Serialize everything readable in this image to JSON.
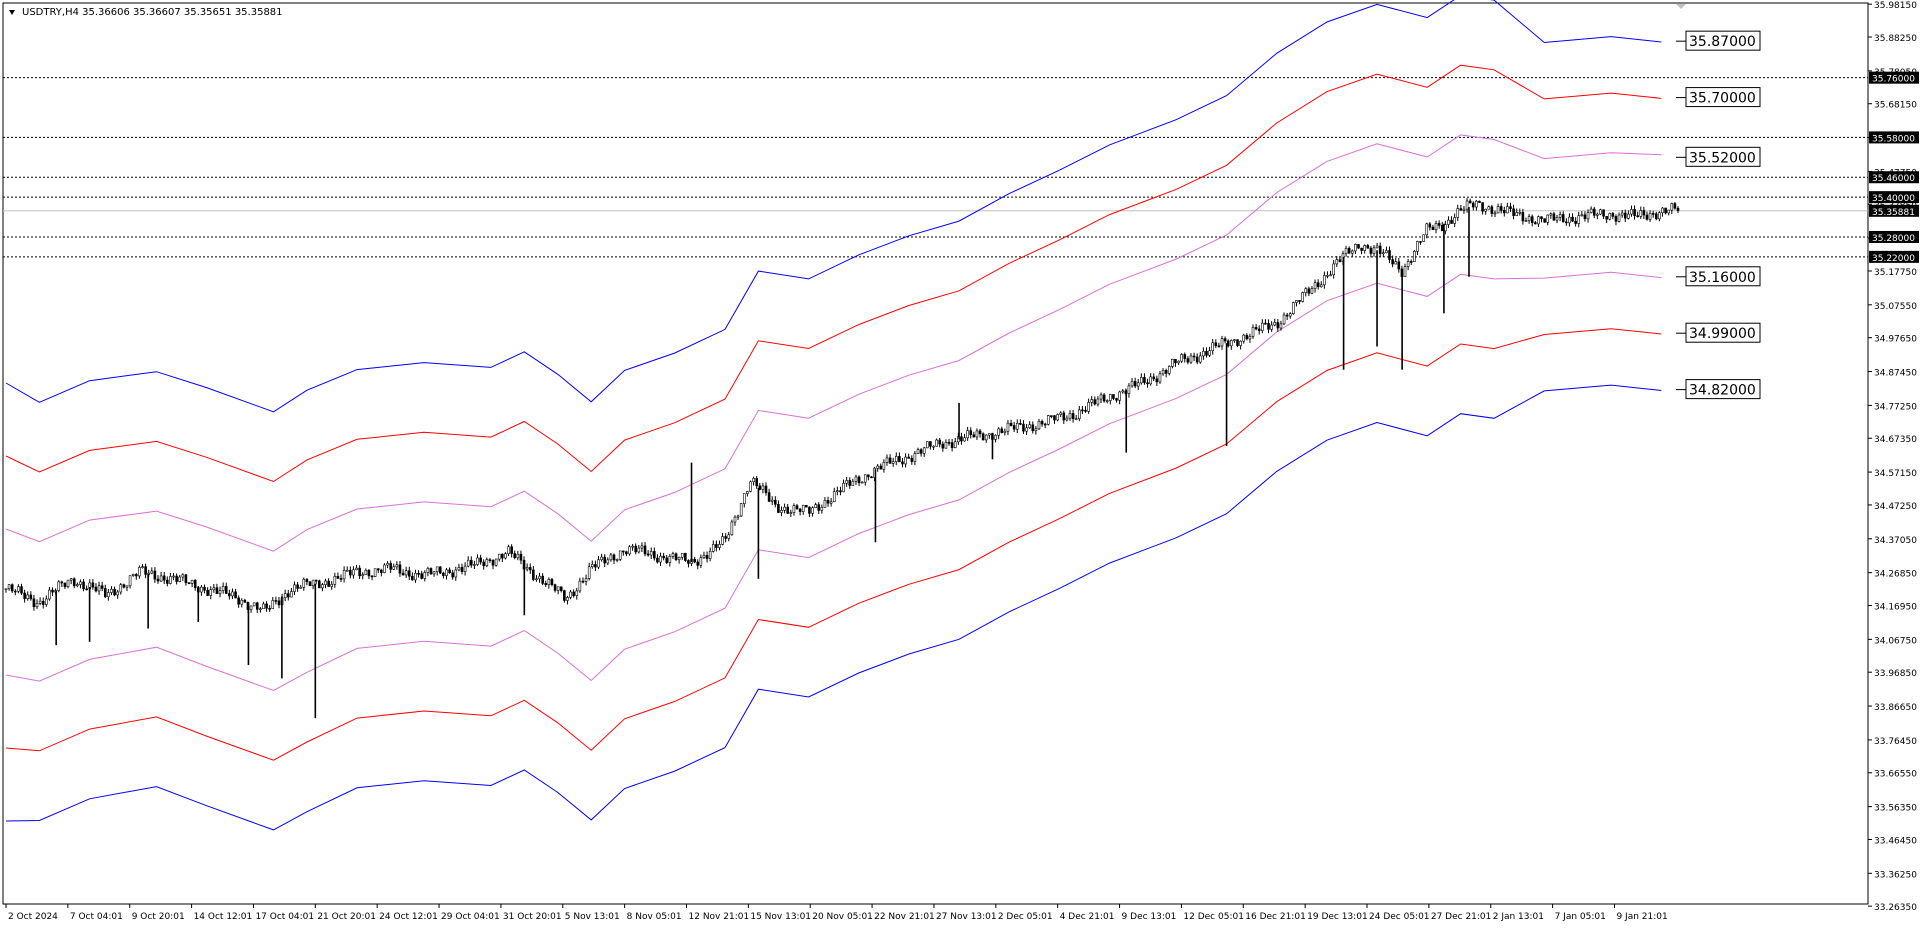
{
  "window": {
    "title": "USDTRY,H4  35.36606 35.36607 35.35651 35.35881"
  },
  "chart_data": {
    "type": "line",
    "symbol": "USDTRY",
    "timeframe": "H4",
    "ohlc_header": {
      "open": "35.36606",
      "high": "35.36607",
      "low": "35.35651",
      "close": "35.35881"
    },
    "ylim": [
      33.27,
      35.985
    ],
    "y_ticks": [
      "35.98150",
      "35.88250",
      "35.78050",
      "35.68150",
      "35.57950",
      "35.47750",
      "35.37850",
      "35.27650",
      "35.17750",
      "35.07550",
      "34.97650",
      "34.87450",
      "34.77250",
      "34.67350",
      "34.57150",
      "34.47250",
      "34.37050",
      "34.26850",
      "34.16950",
      "34.06750",
      "33.96850",
      "33.86650",
      "33.76450",
      "33.66550",
      "33.56350",
      "33.46450",
      "33.36250",
      "33.26350"
    ],
    "x_ticks": [
      {
        "label": "2 Oct 2024",
        "pos": 0.0
      },
      {
        "label": "7 Oct 04:01",
        "pos": 0.037
      },
      {
        "label": "9 Oct 20:01",
        "pos": 0.074
      },
      {
        "label": "14 Oct 12:01",
        "pos": 0.111
      },
      {
        "label": "17 Oct 04:01",
        "pos": 0.148
      },
      {
        "label": "21 Oct 20:01",
        "pos": 0.185
      },
      {
        "label": "24 Oct 12:01",
        "pos": 0.222
      },
      {
        "label": "29 Oct 04:01",
        "pos": 0.259
      },
      {
        "label": "31 Oct 20:01",
        "pos": 0.296
      },
      {
        "label": "5 Nov 13:01",
        "pos": 0.333
      },
      {
        "label": "8 Nov 05:01",
        "pos": 0.37
      },
      {
        "label": "12 Nov 21:01",
        "pos": 0.407
      },
      {
        "label": "15 Nov 13:01",
        "pos": 0.444
      },
      {
        "label": "20 Nov 05:01",
        "pos": 0.481
      },
      {
        "label": "22 Nov 21:01",
        "pos": 0.518
      },
      {
        "label": "27 Nov 13:01",
        "pos": 0.555
      },
      {
        "label": "2 Dec 05:01",
        "pos": 0.592
      },
      {
        "label": "4 Dec 21:01",
        "pos": 0.629
      },
      {
        "label": "9 Dec 13:01",
        "pos": 0.666
      },
      {
        "label": "12 Dec 05:01",
        "pos": 0.703
      },
      {
        "label": "16 Dec 21:01",
        "pos": 0.74
      },
      {
        "label": "19 Dec 13:01",
        "pos": 0.777
      },
      {
        "label": "24 Dec 05:01",
        "pos": 0.814
      },
      {
        "label": "27 Dec 21:01",
        "pos": 0.851
      },
      {
        "label": "2 Jan 13:01",
        "pos": 0.888
      },
      {
        "label": "7 Jan 05:01",
        "pos": 0.925
      },
      {
        "label": "9 Jan 21:01",
        "pos": 0.962
      }
    ],
    "horizontal_levels": [
      {
        "value": 35.76,
        "label": "35.76000"
      },
      {
        "value": 35.58,
        "label": "35.58000"
      },
      {
        "value": 35.46,
        "label": "35.46000"
      },
      {
        "value": 35.4,
        "label": "35.40000"
      },
      {
        "value": 35.28,
        "label": "35.28000"
      },
      {
        "value": 35.22,
        "label": "35.22000"
      }
    ],
    "current_price": {
      "value": 35.35881,
      "label": "35.35881"
    },
    "band_labels": [
      {
        "value": 35.87,
        "label": "35.87000",
        "band": "upper3"
      },
      {
        "value": 35.7,
        "label": "35.70000",
        "band": "upper2"
      },
      {
        "value": 35.52,
        "label": "35.52000",
        "band": "upper1"
      },
      {
        "value": 35.16,
        "label": "35.16000",
        "band": "lower1"
      },
      {
        "value": 34.99,
        "label": "34.99000",
        "band": "lower2"
      },
      {
        "value": 34.82,
        "label": "34.82000",
        "band": "lower3"
      }
    ],
    "bands": {
      "x": [
        0,
        0.02,
        0.05,
        0.09,
        0.12,
        0.16,
        0.18,
        0.21,
        0.25,
        0.29,
        0.31,
        0.33,
        0.35,
        0.37,
        0.4,
        0.43,
        0.45,
        0.48,
        0.51,
        0.54,
        0.57,
        0.6,
        0.63,
        0.66,
        0.7,
        0.73,
        0.76,
        0.79,
        0.82,
        0.85,
        0.87,
        0.89,
        0.92,
        0.96,
        0.99
      ],
      "mid": [
        34.18,
        34.15,
        34.22,
        34.25,
        34.2,
        34.12,
        34.18,
        34.25,
        34.27,
        34.26,
        34.3,
        34.24,
        34.15,
        34.25,
        34.3,
        34.37,
        34.55,
        34.52,
        34.6,
        34.65,
        34.7,
        34.78,
        34.85,
        34.93,
        35.0,
        35.08,
        35.2,
        35.3,
        35.35,
        35.31,
        35.38,
        35.36,
        35.35,
        35.36,
        35.36
      ],
      "upper1": [
        34.4,
        34.36,
        34.43,
        34.45,
        34.41,
        34.33,
        34.4,
        34.46,
        34.48,
        34.47,
        34.51,
        34.45,
        34.36,
        34.46,
        34.51,
        34.58,
        34.76,
        34.73,
        34.81,
        34.86,
        34.91,
        34.99,
        35.06,
        35.14,
        35.21,
        35.29,
        35.41,
        35.51,
        35.56,
        35.52,
        35.59,
        35.57,
        35.52,
        35.53,
        35.53
      ],
      "upper2": [
        34.62,
        34.57,
        34.64,
        34.66,
        34.62,
        34.54,
        34.61,
        34.67,
        34.69,
        34.68,
        34.72,
        34.66,
        34.57,
        34.67,
        34.72,
        34.79,
        34.97,
        34.94,
        35.02,
        35.07,
        35.12,
        35.2,
        35.27,
        35.35,
        35.42,
        35.5,
        35.62,
        35.72,
        35.77,
        35.73,
        35.8,
        35.78,
        35.7,
        35.71,
        35.7
      ],
      "upper3": [
        34.84,
        34.78,
        34.85,
        34.87,
        34.83,
        34.75,
        34.82,
        34.88,
        34.9,
        34.89,
        34.93,
        34.87,
        34.78,
        34.88,
        34.93,
        35.0,
        35.18,
        35.15,
        35.23,
        35.28,
        35.33,
        35.41,
        35.48,
        35.56,
        35.63,
        35.71,
        35.83,
        35.93,
        35.98,
        35.94,
        36.01,
        35.99,
        35.87,
        35.88,
        35.87
      ],
      "lower1": [
        33.96,
        33.94,
        34.01,
        34.04,
        33.99,
        33.91,
        33.97,
        34.04,
        34.06,
        34.05,
        34.09,
        34.03,
        33.94,
        34.04,
        34.09,
        34.16,
        34.34,
        34.31,
        34.39,
        34.44,
        34.49,
        34.57,
        34.64,
        34.72,
        34.79,
        34.87,
        34.99,
        35.09,
        35.14,
        35.1,
        35.17,
        35.15,
        35.16,
        35.17,
        35.16
      ],
      "lower2": [
        33.74,
        33.73,
        33.8,
        33.83,
        33.78,
        33.7,
        33.76,
        33.83,
        33.85,
        33.84,
        33.88,
        33.82,
        33.73,
        33.83,
        33.88,
        33.95,
        34.13,
        34.1,
        34.18,
        34.23,
        34.28,
        34.36,
        34.43,
        34.51,
        34.58,
        34.66,
        34.78,
        34.88,
        34.93,
        34.89,
        34.96,
        34.94,
        34.99,
        35.0,
        34.99
      ],
      "lower3": [
        33.52,
        33.52,
        33.59,
        33.62,
        33.57,
        33.49,
        33.55,
        33.62,
        33.64,
        33.63,
        33.67,
        33.61,
        33.52,
        33.62,
        33.67,
        33.74,
        33.92,
        33.89,
        33.97,
        34.02,
        34.07,
        34.15,
        34.22,
        34.3,
        34.37,
        34.45,
        34.57,
        34.67,
        34.72,
        34.68,
        34.75,
        34.73,
        34.82,
        34.83,
        34.82
      ]
    },
    "price_path": {
      "x": [
        0,
        0.02,
        0.04,
        0.06,
        0.08,
        0.1,
        0.12,
        0.14,
        0.155,
        0.17,
        0.19,
        0.21,
        0.23,
        0.25,
        0.28,
        0.3,
        0.32,
        0.335,
        0.35,
        0.37,
        0.39,
        0.41,
        0.43,
        0.445,
        0.46,
        0.48,
        0.5,
        0.52,
        0.54,
        0.56,
        0.58,
        0.6,
        0.62,
        0.64,
        0.66,
        0.68,
        0.7,
        0.72,
        0.74,
        0.76,
        0.78,
        0.8,
        0.81,
        0.82,
        0.835,
        0.85,
        0.86,
        0.87,
        0.88,
        0.9,
        0.92,
        0.94,
        0.96,
        0.975,
        0.99
      ],
      "y": [
        34.22,
        34.18,
        34.25,
        34.2,
        34.27,
        34.25,
        34.22,
        34.19,
        34.15,
        34.22,
        34.24,
        34.27,
        34.28,
        34.26,
        34.29,
        34.33,
        34.25,
        34.19,
        34.28,
        34.34,
        34.32,
        34.3,
        34.36,
        34.55,
        34.47,
        34.45,
        34.52,
        34.58,
        34.62,
        34.66,
        34.68,
        34.7,
        34.72,
        34.75,
        34.8,
        34.84,
        34.9,
        34.94,
        34.98,
        35.02,
        35.12,
        35.22,
        35.26,
        35.24,
        35.18,
        35.3,
        35.32,
        35.36,
        35.38,
        35.35,
        35.33,
        35.34,
        35.35,
        35.34,
        35.36
      ]
    },
    "spikes": [
      {
        "x": 0.03,
        "low": 34.05
      },
      {
        "x": 0.05,
        "low": 34.06
      },
      {
        "x": 0.085,
        "low": 34.1
      },
      {
        "x": 0.115,
        "low": 34.12
      },
      {
        "x": 0.145,
        "low": 33.99
      },
      {
        "x": 0.165,
        "low": 33.95
      },
      {
        "x": 0.185,
        "low": 33.83
      },
      {
        "x": 0.31,
        "low": 34.14
      },
      {
        "x": 0.41,
        "high": 34.6
      },
      {
        "x": 0.45,
        "low": 34.25
      },
      {
        "x": 0.52,
        "low": 34.36
      },
      {
        "x": 0.57,
        "high": 34.78
      },
      {
        "x": 0.59,
        "low": 34.61
      },
      {
        "x": 0.67,
        "low": 34.63
      },
      {
        "x": 0.73,
        "low": 34.65
      },
      {
        "x": 0.8,
        "low": 34.88
      },
      {
        "x": 0.82,
        "low": 34.95
      },
      {
        "x": 0.835,
        "low": 34.88
      },
      {
        "x": 0.86,
        "low": 35.05
      },
      {
        "x": 0.875,
        "low": 35.16
      }
    ]
  }
}
